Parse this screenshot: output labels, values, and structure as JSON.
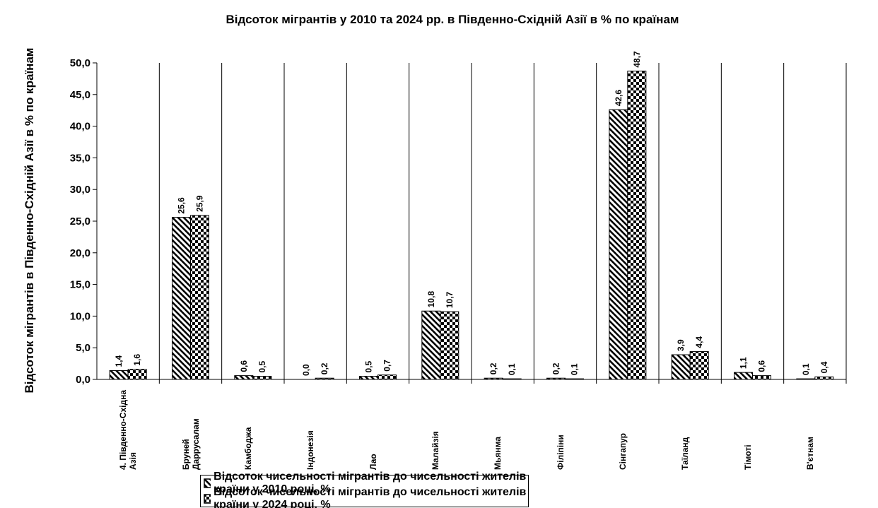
{
  "chart_data": {
    "type": "bar",
    "title": "Відсоток мігрантів у 2010 та 2024 рр. в Південно-Східній Азії в % по країнам",
    "ylabel": "Відсоток мігрантів в Південно-Східній Азії в % по країнам",
    "categories": [
      "4. Південно-Східна Азія",
      "Бруней Даррусалам",
      "Камбоджа",
      "Індонезія",
      "Лао",
      "Малайзія",
      "Мьянма",
      "Філіпіни",
      "Сінгапур",
      "Таїланд",
      "Тімоті",
      "В'єтнам"
    ],
    "series": [
      {
        "name": "Відсоток чисельності мігрантів до чисельності жителів країни у 2010 році, %",
        "color": "#000000",
        "pattern": "diagonal",
        "values": [
          1.4,
          25.6,
          0.6,
          0.0,
          0.5,
          10.8,
          0.2,
          0.2,
          42.6,
          3.9,
          1.1,
          0.1
        ],
        "value_labels": [
          "1,4",
          "25,6",
          "0,6",
          "0,0",
          "0,5",
          "10,8",
          "0,2",
          "0,2",
          "42,6",
          "3,9",
          "1,1",
          "0,1"
        ]
      },
      {
        "name": "Відсоток чисельності мігрантів до чисельності жителів країни у 2024 році, %",
        "color": "#000000",
        "pattern": "checker",
        "values": [
          1.6,
          25.9,
          0.5,
          0.2,
          0.7,
          10.7,
          0.1,
          0.1,
          48.7,
          4.4,
          0.6,
          0.4
        ],
        "value_labels": [
          "1,6",
          "25,9",
          "0,5",
          "0,2",
          "0,7",
          "10,7",
          "0,1",
          "0,1",
          "48,7",
          "4,4",
          "0,6",
          "0,4"
        ]
      }
    ],
    "ylim": [
      0,
      50
    ],
    "yticks": [
      {
        "value": 0,
        "label": "0,0"
      },
      {
        "value": 5,
        "label": "5,0"
      },
      {
        "value": 10,
        "label": "10,0"
      },
      {
        "value": 15,
        "label": "15,0"
      },
      {
        "value": 20,
        "label": "20,0"
      },
      {
        "value": 25,
        "label": "25,0"
      },
      {
        "value": 30,
        "label": "30,0"
      },
      {
        "value": 35,
        "label": "35,0"
      },
      {
        "value": 40,
        "label": "40,0"
      },
      {
        "value": 45,
        "label": "45,0"
      },
      {
        "value": 50,
        "label": "50,0"
      }
    ],
    "legend": "bottom"
  }
}
